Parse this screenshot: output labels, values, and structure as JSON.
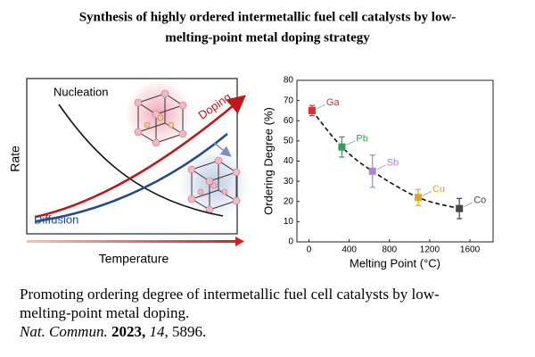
{
  "header": {
    "title_lines": [
      "Synthesis of highly ordered intermetallic fuel cell catalysts by low-",
      "melting-point metal doping strategy"
    ]
  },
  "schematic": {
    "nucleation": "Nucleation",
    "doping": "Doping",
    "diffusion": "Diffusion",
    "y_label": "Rate",
    "x_label": "Temperature"
  },
  "chart_data": {
    "type": "scatter",
    "x_label": "Melting Point (°C)",
    "y_label": "Ordering Degree (%)",
    "x": [
      30,
      327,
      631,
      1085,
      1495
    ],
    "values": [
      65,
      47,
      35,
      22,
      16.5
    ],
    "errors": [
      2.5,
      5,
      8,
      4,
      5
    ],
    "point_labels": [
      "Ga",
      "Pb",
      "Sb",
      "Cu",
      "Co"
    ],
    "colors": [
      "#d9302c",
      "#2fa05c",
      "#b27ed8",
      "#e0a42a",
      "#454545"
    ],
    "xlim": [
      -120,
      1830
    ],
    "xticks": [
      0,
      400,
      800,
      1200,
      1600
    ],
    "ylim": [
      0,
      80
    ],
    "yticks": [
      0,
      10,
      20,
      30,
      40,
      50,
      60,
      70,
      80
    ]
  },
  "caption": {
    "lines": [
      "Promoting ordering degree of intermetallic fuel cell catalysts by low-",
      "melting-point metal doping."
    ],
    "citation": {
      "journal": "Nat. Commun.",
      "year": "2023,",
      "volume": "14",
      "pages": ", 5896."
    }
  }
}
